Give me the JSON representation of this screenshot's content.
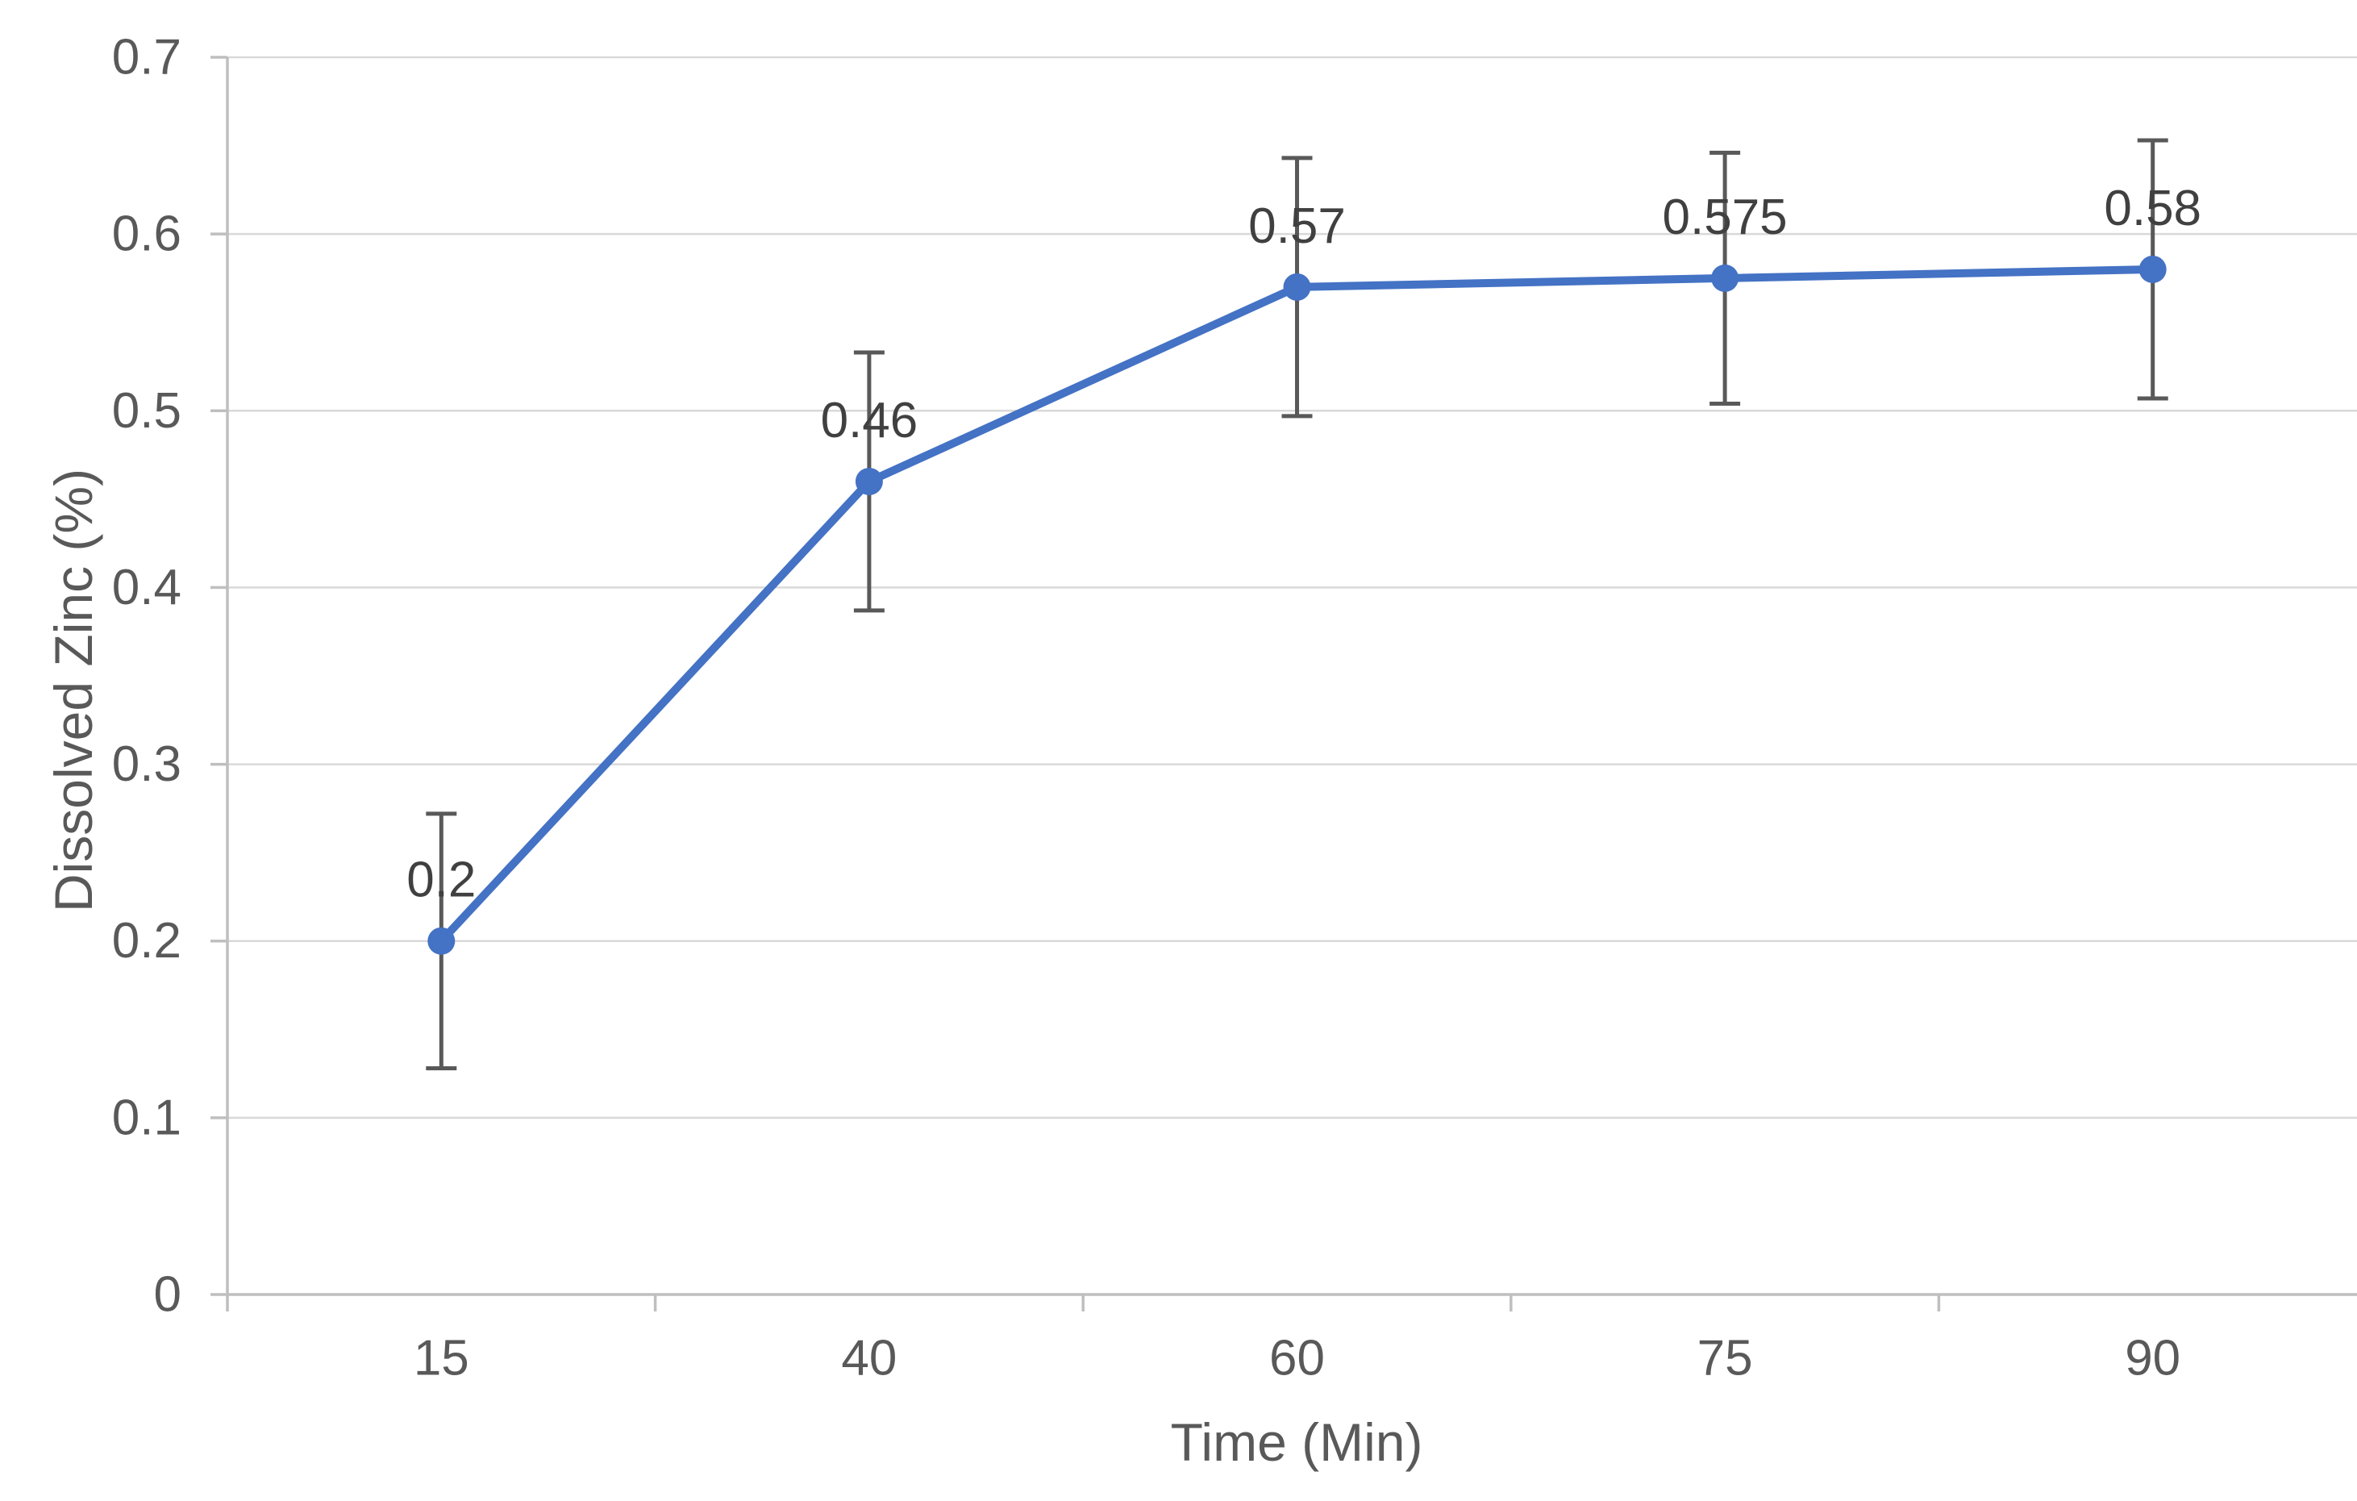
{
  "chart_data": {
    "type": "line",
    "title": "",
    "xlabel": "Time (Min)",
    "ylabel": "Dissolved Zinc (%)",
    "categories": [
      "15",
      "40",
      "60",
      "75",
      "90"
    ],
    "series": [
      {
        "values": [
          0.2,
          0.46,
          0.57,
          0.575,
          0.58
        ],
        "data_labels": [
          "0.2",
          "0.46",
          "0.57",
          "0.575",
          "0.58"
        ],
        "error": [
          0.072,
          0.073,
          0.073,
          0.071,
          0.073
        ]
      }
    ],
    "ylim": [
      0,
      0.7
    ],
    "y_tick_step": 0.1,
    "y_ticks": [
      "0",
      "0.1",
      "0.2",
      "0.3",
      "0.4",
      "0.5",
      "0.6",
      "0.7"
    ],
    "grid": "horizontal",
    "legend": "none",
    "marker": "circle",
    "colors": {
      "line": "#4472C4",
      "marker": "#4472C4",
      "error_bar": "#595959",
      "gridline": "#D9D9D9",
      "axis": "#BFBFBF",
      "tick_label": "#595959",
      "data_label": "#404040",
      "axis_title": "#595959",
      "background": "#FFFFFF"
    }
  }
}
